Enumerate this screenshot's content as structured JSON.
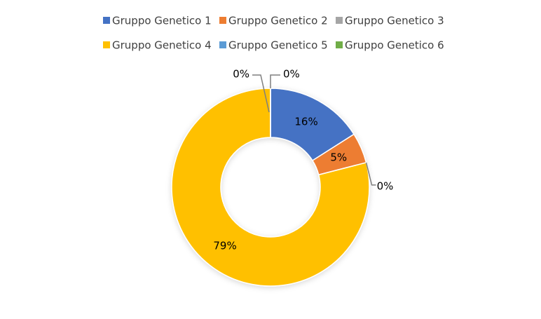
{
  "chart_data": {
    "type": "donut",
    "categories": [
      "Gruppo Genetico 1",
      "Gruppo Genetico 2",
      "Gruppo Genetico 3",
      "Gruppo Genetico 4",
      "Gruppo Genetico 5",
      "Gruppo Genetico 6"
    ],
    "values": [
      16,
      5,
      0,
      79,
      0,
      0
    ],
    "value_labels": [
      "16%",
      "5%",
      "0%",
      "79%",
      "0%",
      "0%"
    ],
    "colors": [
      "#4472c4",
      "#ed7d31",
      "#a5a5a5",
      "#ffc000",
      "#5b9bd5",
      "#70ad47"
    ],
    "legend": "top"
  }
}
